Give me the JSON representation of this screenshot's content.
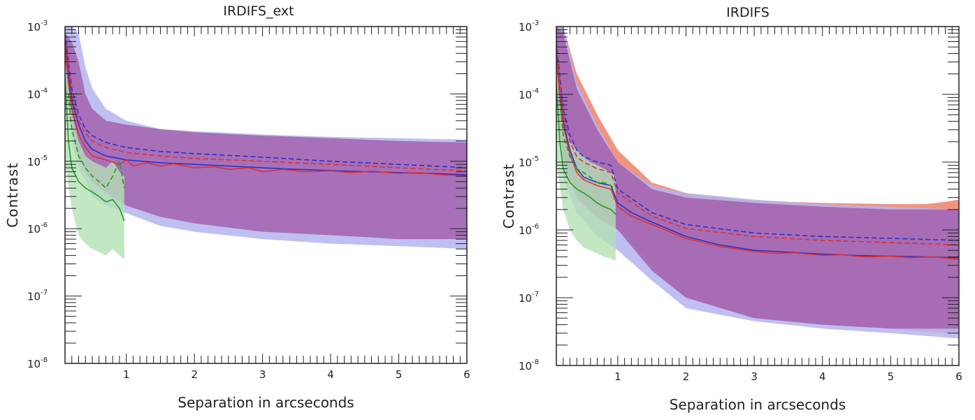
{
  "chart_data": [
    {
      "type": "line",
      "title": "IRDIFS_ext",
      "xlabel": "Separation in arcseconds",
      "ylabel": "Contrast",
      "xlim": [
        0.1,
        6
      ],
      "ylim": [
        1e-08,
        0.001
      ],
      "yscale": "log",
      "xticks": [
        "1",
        "2",
        "3",
        "4",
        "5",
        "6"
      ],
      "ytick_base": "10",
      "ytick_exponents": [
        "-3",
        "-4",
        "-5",
        "-6",
        "-7",
        "-8"
      ],
      "grid": false,
      "colors": {
        "red": "#e03030",
        "blue": "#3030c8",
        "green": "#20a020",
        "purple_band": "#a05aa8",
        "blue_band": "#b4b4f0",
        "green_band": "#b4e0b4"
      },
      "bands": [
        {
          "color": "blue",
          "x": [
            0.1,
            0.2,
            0.3,
            0.4,
            0.5,
            0.7,
            1.0,
            1.5,
            2,
            3,
            4,
            5,
            6
          ],
          "upper": [
            0.001,
            0.001,
            0.0008,
            0.00025,
            0.00012,
            6e-05,
            4e-05,
            3e-05,
            2.8e-05,
            2.5e-05,
            2.3e-05,
            2.2e-05,
            2.1e-05
          ],
          "lower": [
            0.0001,
            2e-05,
            8e-06,
            5e-06,
            3e-06,
            2.2e-06,
            1.7e-06,
            1.1e-06,
            9e-07,
            7e-07,
            6e-07,
            5.5e-07,
            5e-07
          ]
        },
        {
          "color": "purple",
          "x": [
            0.1,
            0.2,
            0.3,
            0.4,
            0.5,
            0.7,
            1.0,
            1.5,
            2,
            3,
            4,
            5,
            6
          ],
          "upper": [
            0.0008,
            0.0006,
            0.0003,
            0.0001,
            6e-05,
            4e-05,
            3.5e-05,
            3e-05,
            2.7e-05,
            2.4e-05,
            2.2e-05,
            2e-05,
            1.9e-05
          ],
          "lower": [
            0.00015,
            3e-05,
            1.2e-05,
            7e-06,
            5e-06,
            3.5e-06,
            2.2e-06,
            1.5e-06,
            1.2e-06,
            9e-07,
            8e-07,
            7e-07,
            7e-07
          ]
        },
        {
          "color": "green",
          "x": [
            0.1,
            0.2,
            0.3,
            0.4,
            0.5,
            0.6,
            0.7,
            0.8,
            0.9,
            0.97
          ],
          "upper": [
            0.0003,
            5e-05,
            2e-05,
            1.2e-05,
            1e-05,
            9e-06,
            8e-06,
            1e-05,
            7e-06,
            6e-06
          ],
          "lower": [
            1e-05,
            2e-06,
            8e-07,
            6e-07,
            5e-07,
            4.5e-07,
            4e-07,
            5e-07,
            4e-07,
            3.5e-07
          ]
        }
      ],
      "series": [
        {
          "color": "blue",
          "style": "solid",
          "x": [
            0.1,
            0.15,
            0.2,
            0.3,
            0.4,
            0.5,
            0.7,
            1.0,
            1.5,
            2,
            2.5,
            3,
            3.5,
            4,
            4.5,
            5,
            5.5,
            6
          ],
          "y": [
            0.0006,
            0.0002,
            8e-05,
            3.5e-05,
            2e-05,
            1.5e-05,
            1.2e-05,
            1.05e-05,
            9.5e-06,
            9e-06,
            8.5e-06,
            8e-06,
            7.6e-06,
            7.3e-06,
            7e-06,
            6.8e-06,
            6.6e-06,
            6.3e-06
          ]
        },
        {
          "color": "red",
          "style": "solid",
          "x": [
            0.1,
            0.15,
            0.2,
            0.3,
            0.4,
            0.5,
            0.7,
            0.9,
            1.0,
            1.1,
            1.3,
            1.5,
            1.7,
            2,
            2.3,
            2.5,
            2.8,
            3,
            3.3,
            3.6,
            4,
            4.3,
            4.6,
            5,
            5.3,
            5.6,
            6
          ],
          "y": [
            0.0005,
            0.00015,
            6e-05,
            2.5e-05,
            1.6e-05,
            1.2e-05,
            1.05e-05,
            9e-06,
            1.05e-05,
            8.5e-06,
            9.5e-06,
            8.5e-06,
            9.2e-06,
            8e-06,
            8.3e-06,
            7.6e-06,
            8e-06,
            7e-06,
            7.6e-06,
            7e-06,
            7.2e-06,
            6.8e-06,
            7.1e-06,
            6.6e-06,
            6.8e-06,
            6.3e-06,
            6.1e-06
          ]
        },
        {
          "color": "blue",
          "style": "dashed",
          "x": [
            0.1,
            0.2,
            0.3,
            0.4,
            0.5,
            0.7,
            1.0,
            1.5,
            2,
            3,
            4,
            5,
            6
          ],
          "y": [
            0.0008,
            0.00012,
            5e-05,
            3e-05,
            2.4e-05,
            1.9e-05,
            1.6e-05,
            1.4e-05,
            1.3e-05,
            1.15e-05,
            1e-05,
            9e-06,
            8e-06
          ]
        },
        {
          "color": "red",
          "style": "dashed",
          "x": [
            0.1,
            0.2,
            0.3,
            0.4,
            0.5,
            0.7,
            1.0,
            1.5,
            2,
            3,
            4,
            5,
            6
          ],
          "y": [
            0.0007,
            0.0001,
            4e-05,
            2.6e-05,
            2e-05,
            1.6e-05,
            1.35e-05,
            1.2e-05,
            1.1e-05,
            1e-05,
            9e-06,
            8e-06,
            7.2e-06
          ]
        },
        {
          "color": "green",
          "style": "solid",
          "x": [
            0.1,
            0.15,
            0.2,
            0.3,
            0.4,
            0.5,
            0.6,
            0.7,
            0.8,
            0.9,
            0.97
          ],
          "y": [
            0.00018,
            2e-05,
            8e-06,
            5e-06,
            4e-06,
            3.5e-06,
            3e-06,
            2.5e-06,
            2.7e-06,
            2e-06,
            1.3e-06
          ]
        },
        {
          "color": "green",
          "style": "dashed",
          "x": [
            0.15,
            0.2,
            0.3,
            0.4,
            0.5,
            0.6,
            0.7,
            0.8,
            0.9,
            0.97
          ],
          "y": [
            0.0001,
            3e-05,
            1.2e-05,
            8e-06,
            6e-06,
            5e-06,
            4e-06,
            6e-06,
            1e-05,
            4e-06
          ]
        }
      ]
    },
    {
      "type": "line",
      "title": "IRDIFS",
      "xlabel": "Separation in arcseconds",
      "ylabel": "Contrast",
      "xlim": [
        0.1,
        6
      ],
      "ylim": [
        1e-08,
        0.001
      ],
      "yscale": "log",
      "xticks": [
        "1",
        "2",
        "3",
        "4",
        "5",
        "6"
      ],
      "ytick_base": "10",
      "ytick_exponents": [
        "-3",
        "-4",
        "-5",
        "-6",
        "-7",
        "-8"
      ],
      "grid": false,
      "colors": {
        "red": "#e03030",
        "blue": "#3030c8",
        "green": "#20a020",
        "purple_band": "#a05aa8",
        "red_band": "#f0806a",
        "blue_band": "#b4b4f0",
        "green_band": "#b4e0b4"
      },
      "bands": [
        {
          "color": "red",
          "x": [
            0.1,
            0.2,
            0.4,
            0.7,
            1.0,
            1.5,
            2,
            3,
            4,
            5,
            5.5,
            5.8,
            6
          ],
          "upper": [
            0.001,
            0.001,
            0.0002,
            5e-05,
            1.5e-05,
            5e-06,
            3.5e-06,
            2.7e-06,
            2.5e-06,
            2.4e-06,
            2.4e-06,
            2.6e-06,
            2.8e-06
          ],
          "lower": [
            8e-05,
            1e-05,
            4e-06,
            2e-06,
            1.2e-06,
            3e-07,
            1e-07,
            5e-08,
            4e-08,
            3.5e-08,
            3.2e-08,
            3e-08,
            3e-08
          ]
        },
        {
          "color": "blue",
          "x": [
            0.1,
            0.2,
            0.4,
            0.7,
            1.0,
            1.5,
            2,
            3,
            4,
            5,
            6
          ],
          "upper": [
            0.001,
            0.001,
            0.00015,
            3.5e-05,
            1e-05,
            4.5e-06,
            3.5e-06,
            2.8e-06,
            2.4e-06,
            2.2e-06,
            2e-06
          ],
          "lower": [
            5e-05,
            6e-06,
            1.8e-06,
            8e-07,
            5e-07,
            1.8e-07,
            7e-08,
            4.5e-08,
            3.5e-08,
            3e-08,
            2.5e-08
          ]
        },
        {
          "color": "purple",
          "x": [
            0.1,
            0.2,
            0.4,
            0.7,
            1.0,
            1.5,
            2,
            3,
            4,
            5,
            6
          ],
          "upper": [
            0.001,
            0.0008,
            0.00012,
            3e-05,
            1e-05,
            4e-06,
            3e-06,
            2.5e-06,
            2.2e-06,
            2e-06,
            2e-06
          ],
          "lower": [
            8e-05,
            1e-05,
            3e-06,
            1.5e-06,
            1e-06,
            2.5e-07,
            1e-07,
            5e-08,
            4e-08,
            3.5e-08,
            3.5e-08
          ]
        },
        {
          "color": "green",
          "x": [
            0.1,
            0.2,
            0.3,
            0.4,
            0.5,
            0.6,
            0.7,
            0.8,
            0.9,
            0.97
          ],
          "upper": [
            0.0003,
            4e-05,
            2e-05,
            1.5e-05,
            1.2e-05,
            1e-05,
            9e-06,
            8e-06,
            7e-06,
            6e-06
          ],
          "lower": [
            1e-05,
            2e-06,
            1e-06,
            7e-07,
            5.5e-07,
            5e-07,
            4.5e-07,
            4e-07,
            3.8e-07,
            3.5e-07
          ]
        }
      ],
      "series": [
        {
          "color": "blue",
          "style": "solid",
          "x": [
            0.1,
            0.15,
            0.2,
            0.3,
            0.4,
            0.5,
            0.7,
            0.9,
            1.0,
            1.2,
            1.5,
            2,
            2.5,
            3,
            3.5,
            4,
            4.5,
            5,
            5.5,
            6
          ],
          "y": [
            0.0004,
            0.0001,
            4e-05,
            1.5e-05,
            8e-06,
            6e-06,
            5e-06,
            4.5e-06,
            2.5e-06,
            1.8e-06,
            1.3e-06,
            8e-07,
            6e-07,
            5e-07,
            4.7e-07,
            4.4e-07,
            4.2e-07,
            4.1e-07,
            4e-07,
            3.9e-07
          ]
        },
        {
          "color": "red",
          "style": "solid",
          "x": [
            0.1,
            0.15,
            0.2,
            0.3,
            0.4,
            0.5,
            0.7,
            0.9,
            1.0,
            1.2,
            1.5,
            2,
            2.5,
            3,
            3.3,
            3.6,
            4,
            4.3,
            4.6,
            5,
            5.3,
            5.6,
            6
          ],
          "y": [
            0.00035,
            9e-05,
            3.5e-05,
            1.3e-05,
            7e-06,
            5.5e-06,
            4.5e-06,
            4e-06,
            2.2e-06,
            1.6e-06,
            1.2e-06,
            7.5e-07,
            5.7e-07,
            4.8e-07,
            4.5e-07,
            4.6e-07,
            4.2e-07,
            4.3e-07,
            4e-07,
            4.1e-07,
            3.9e-07,
            4e-07,
            3.7e-07
          ]
        },
        {
          "color": "blue",
          "style": "dashed",
          "x": [
            0.1,
            0.2,
            0.3,
            0.4,
            0.5,
            0.7,
            0.9,
            1.0,
            1.5,
            2,
            3,
            4,
            5,
            6
          ],
          "y": [
            0.0006,
            6e-05,
            2.5e-05,
            1.5e-05,
            1.2e-05,
            1e-05,
            9e-06,
            4e-06,
            1.8e-06,
            1.2e-06,
            9e-07,
            8e-07,
            7.5e-07,
            7e-07
          ]
        },
        {
          "color": "red",
          "style": "dashed",
          "x": [
            0.1,
            0.2,
            0.3,
            0.4,
            0.5,
            0.7,
            0.9,
            1.0,
            1.5,
            2,
            3,
            4,
            5,
            6
          ],
          "y": [
            0.0005,
            5e-05,
            2e-05,
            1.2e-05,
            1e-05,
            8e-06,
            7e-06,
            3.5e-06,
            1.6e-06,
            1.05e-06,
            8e-07,
            7e-07,
            6.5e-07,
            6e-07
          ]
        },
        {
          "color": "green",
          "style": "solid",
          "x": [
            0.1,
            0.15,
            0.2,
            0.3,
            0.4,
            0.5,
            0.6,
            0.7,
            0.8,
            0.9,
            0.97
          ],
          "y": [
            0.00015,
            2e-05,
            8e-06,
            5e-06,
            4e-06,
            3.5e-06,
            3e-06,
            2.5e-06,
            2.2e-06,
            2e-06,
            1.7e-06
          ]
        },
        {
          "color": "green",
          "style": "dashed",
          "x": [
            0.15,
            0.2,
            0.3,
            0.4,
            0.5,
            0.6,
            0.7,
            0.8,
            0.9,
            0.97
          ],
          "y": [
            8e-05,
            2.5e-05,
            1.2e-05,
            8e-06,
            7e-06,
            6e-06,
            5e-06,
            5e-06,
            4.5e-06,
            4e-06
          ]
        }
      ]
    }
  ]
}
